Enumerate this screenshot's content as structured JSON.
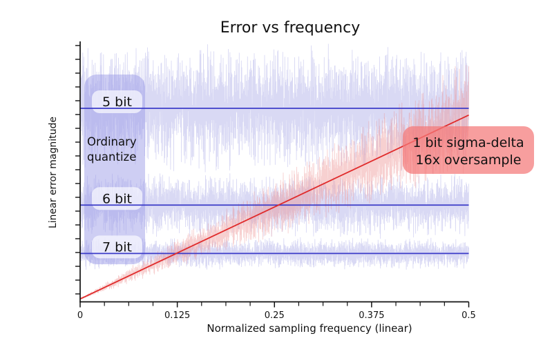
{
  "chart_data": {
    "type": "line",
    "title": "Error vs frequency",
    "xlabel": "Normalized sampling frequency (linear)",
    "ylabel": "Linear error magnitude",
    "xlim": [
      0,
      0.5
    ],
    "ylim": [
      0,
      1.35
    ],
    "y_units": "linear error magnitude, normalized so the 5-bit quantization error level = 1.0 (y ticks unlabeled)",
    "x_ticks": [
      0,
      0.125,
      0.25,
      0.375,
      0.5
    ],
    "x_tick_labels": [
      "0",
      "0.125",
      "0.25",
      "0.375",
      "0.5"
    ],
    "x_minor_ticks_per_division": 4,
    "grid": false,
    "legend_position": "none (inline annotation boxes)",
    "series": [
      {
        "name": "5 bit ordinary quantize",
        "shape": "constant",
        "level": 1.0,
        "line_color": "#3b3bc8",
        "noise_color": "#9a9ae2",
        "noise_amplitude": 0.35
      },
      {
        "name": "6 bit ordinary quantize",
        "shape": "constant",
        "level": 0.5,
        "line_color": "#3b3bc8",
        "noise_color": "#9a9ae2",
        "noise_amplitude": 0.175
      },
      {
        "name": "7 bit ordinary quantize",
        "shape": "constant",
        "level": 0.25,
        "line_color": "#3b3bc8",
        "noise_color": "#9a9ae2",
        "noise_amplitude": 0.0875
      },
      {
        "name": "1 bit sigma-delta 16x oversample",
        "shape": "linear-rise",
        "value_start": 0.015,
        "value_end": 0.965,
        "line_color": "#e02b2b",
        "noise_color": "#ec8f8f",
        "noise_amplitude_ratio": 0.33
      }
    ],
    "annotations": {
      "bit_labels": [
        "5 bit",
        "6 bit",
        "7 bit"
      ],
      "group_label": [
        "Ordinary",
        "quantize"
      ],
      "sigma_label": [
        "1 bit sigma-delta",
        "16x oversample"
      ],
      "group_box_color": "#9e9ee8",
      "pill_color": "#fafaff",
      "sigma_box_color": "#f47878"
    }
  }
}
